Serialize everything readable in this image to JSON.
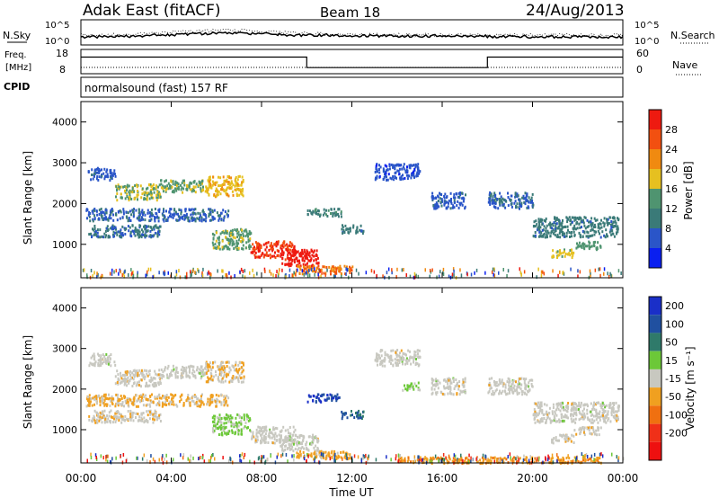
{
  "header": {
    "title": "Adak East (fitACF)",
    "beam": "Beam 18",
    "date": "24/Aug/2013"
  },
  "summary_panels": {
    "nsky_label": "N.Sky",
    "nsearch_label": "N.Search",
    "freq_label": "Freq.",
    "freq_unit": "[MHz]",
    "nave_label": "Nave",
    "cpid_label": "CPID",
    "cpid_value": "normalsound (fast) 157 RF",
    "noise_ticks": [
      "10^5",
      "10^0"
    ],
    "freq_ticks": [
      "18",
      "8"
    ],
    "nave_ticks": [
      "60",
      "0"
    ]
  },
  "axes": {
    "ylabel": "Slant Range [km]",
    "xlabel": "Time UT",
    "yticks": [
      "1000",
      "2000",
      "3000",
      "4000"
    ],
    "xticks": [
      "00:00",
      "04:00",
      "08:00",
      "12:00",
      "16:00",
      "20:00",
      "00:00"
    ]
  },
  "colorbars": {
    "power": {
      "label": "Power [dB]",
      "ticks": [
        "4",
        "8",
        "12",
        "16",
        "20",
        "24",
        "28"
      ],
      "colors": [
        "#0a1ff0",
        "#2a55c8",
        "#3a7a78",
        "#4f9470",
        "#e6c020",
        "#f08a10",
        "#f25010",
        "#ee1a10"
      ]
    },
    "velocity": {
      "label": "Velocity [m s⁻¹]",
      "ticks": [
        "200",
        "100",
        "50",
        "15",
        "-15",
        "-50",
        "-100",
        "-200"
      ],
      "colors": [
        "#1a2fc8",
        "#2050a0",
        "#2f7a6a",
        "#6cc838",
        "#c8c8c0",
        "#f0a020",
        "#f07010",
        "#f03018",
        "#ee1010"
      ]
    }
  },
  "chart_data": [
    {
      "type": "heatmap",
      "name": "Power",
      "xlabel": "Time UT",
      "ylabel": "Slant Range [km]",
      "xlim": [
        0,
        24
      ],
      "ylim": [
        180,
        4500
      ],
      "colorbar_label": "Power [dB]",
      "colorbar_range": [
        0,
        30
      ],
      "regions": [
        {
          "t0": 0.3,
          "t1": 1.5,
          "r0": 2600,
          "r1": 2900,
          "value": 6
        },
        {
          "t0": 1.5,
          "t1": 3.5,
          "r0": 2100,
          "r1": 2500,
          "value": 15
        },
        {
          "t0": 3.5,
          "t1": 5.5,
          "r0": 2300,
          "r1": 2600,
          "value": 14
        },
        {
          "t0": 5.5,
          "t1": 7.2,
          "r0": 2200,
          "r1": 2700,
          "value": 18
        },
        {
          "t0": 0.2,
          "t1": 6.5,
          "r0": 1600,
          "r1": 1900,
          "value": 7
        },
        {
          "t0": 0.3,
          "t1": 3.5,
          "r0": 1200,
          "r1": 1500,
          "value": 8
        },
        {
          "t0": 5.8,
          "t1": 7.5,
          "r0": 900,
          "r1": 1400,
          "value": 14
        },
        {
          "t0": 7.5,
          "t1": 9.5,
          "r0": 700,
          "r1": 1100,
          "value": 26
        },
        {
          "t0": 8.8,
          "t1": 10.5,
          "r0": 500,
          "r1": 900,
          "value": 28
        },
        {
          "t0": 9.5,
          "t1": 12,
          "r0": 300,
          "r1": 500,
          "value": 22
        },
        {
          "t0": 10,
          "t1": 11.5,
          "r0": 1700,
          "r1": 1900,
          "value": 10
        },
        {
          "t0": 11.5,
          "t1": 12.5,
          "r0": 1300,
          "r1": 1500,
          "value": 9
        },
        {
          "t0": 13,
          "t1": 15,
          "r0": 2600,
          "r1": 3000,
          "value": 5
        },
        {
          "t0": 15.5,
          "t1": 17,
          "r0": 1900,
          "r1": 2300,
          "value": 6
        },
        {
          "t0": 18,
          "t1": 20,
          "r0": 1900,
          "r1": 2300,
          "value": 7
        },
        {
          "t0": 20,
          "t1": 23.8,
          "r0": 1200,
          "r1": 1700,
          "value": 9
        },
        {
          "t0": 20.8,
          "t1": 21.8,
          "r0": 700,
          "r1": 900,
          "value": 16
        },
        {
          "t0": 21.8,
          "t1": 23,
          "r0": 900,
          "r1": 1100,
          "value": 13
        }
      ]
    },
    {
      "type": "heatmap",
      "name": "Velocity",
      "xlabel": "Time UT",
      "ylabel": "Slant Range [km]",
      "xlim": [
        0,
        24
      ],
      "ylim": [
        180,
        4500
      ],
      "colorbar_label": "Velocity [m s⁻¹]",
      "colorbar_range": [
        -200,
        200
      ],
      "regions": [
        {
          "t0": 0.3,
          "t1": 1.5,
          "r0": 2600,
          "r1": 2900,
          "value": 0
        },
        {
          "t0": 1.5,
          "t1": 3.5,
          "r0": 2100,
          "r1": 2500,
          "value": -5
        },
        {
          "t0": 3.5,
          "t1": 5.5,
          "r0": 2300,
          "r1": 2600,
          "value": 0
        },
        {
          "t0": 5.5,
          "t1": 7.2,
          "r0": 2200,
          "r1": 2700,
          "value": -20
        },
        {
          "t0": 0.2,
          "t1": 6.5,
          "r0": 1600,
          "r1": 1900,
          "value": -30
        },
        {
          "t0": 0.3,
          "t1": 3.5,
          "r0": 1200,
          "r1": 1500,
          "value": -10
        },
        {
          "t0": 5.8,
          "t1": 7.5,
          "r0": 900,
          "r1": 1400,
          "value": 30
        },
        {
          "t0": 7.5,
          "t1": 9.5,
          "r0": 700,
          "r1": 1100,
          "value": 0
        },
        {
          "t0": 8.8,
          "t1": 10.5,
          "r0": 500,
          "r1": 900,
          "value": 0
        },
        {
          "t0": 9.5,
          "t1": 12,
          "r0": 300,
          "r1": 500,
          "value": -40
        },
        {
          "t0": 10,
          "t1": 11.5,
          "r0": 1700,
          "r1": 1900,
          "value": 150
        },
        {
          "t0": 11.5,
          "t1": 12.5,
          "r0": 1300,
          "r1": 1500,
          "value": 120
        },
        {
          "t0": 13,
          "t1": 15,
          "r0": 2600,
          "r1": 3000,
          "value": 0
        },
        {
          "t0": 14.2,
          "t1": 15,
          "r0": 2000,
          "r1": 2200,
          "value": 30
        },
        {
          "t0": 15.5,
          "t1": 17,
          "r0": 1900,
          "r1": 2300,
          "value": 0
        },
        {
          "t0": 18,
          "t1": 20,
          "r0": 1900,
          "r1": 2300,
          "value": 0
        },
        {
          "t0": 20,
          "t1": 23.8,
          "r0": 1200,
          "r1": 1700,
          "value": 0
        },
        {
          "t0": 20.8,
          "t1": 21.8,
          "r0": 700,
          "r1": 900,
          "value": -5
        },
        {
          "t0": 21.8,
          "t1": 23,
          "r0": 900,
          "r1": 1100,
          "value": -5
        },
        {
          "t0": 14,
          "t1": 23,
          "r0": 200,
          "r1": 350,
          "value": -60
        }
      ]
    },
    {
      "type": "line",
      "name": "Freq.",
      "ylim": [
        8,
        18
      ],
      "x": [
        0,
        10,
        10,
        18,
        18,
        24
      ],
      "values": [
        15.5,
        15.5,
        10.2,
        10.2,
        15.5,
        15.5
      ]
    }
  ]
}
